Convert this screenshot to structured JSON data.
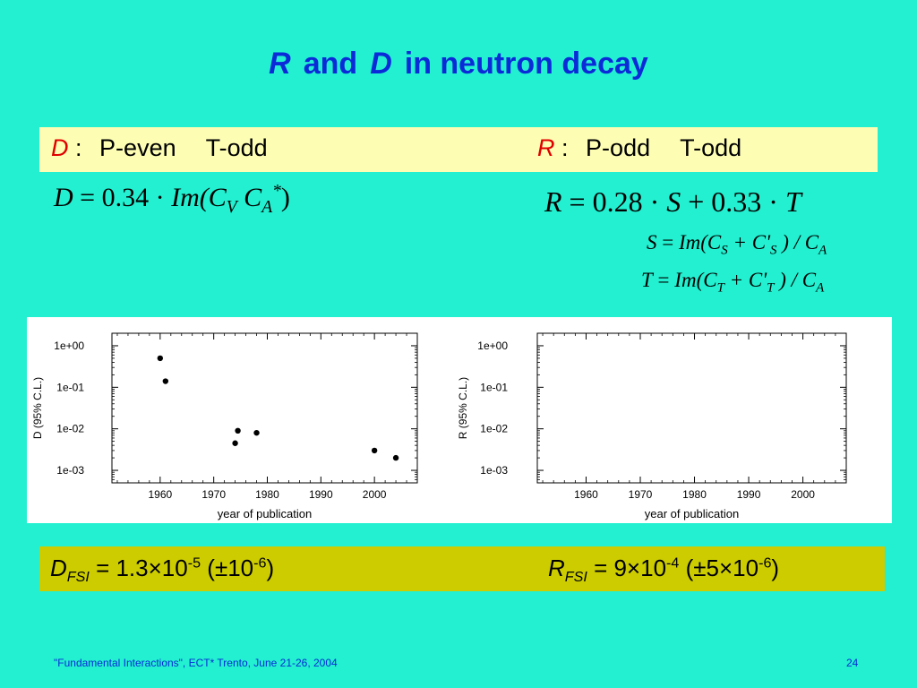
{
  "title": {
    "r": "R",
    "and": "and",
    "d": "D",
    "rest": "in neutron decay"
  },
  "symmetry": {
    "d_symbol": "D",
    "d_colon": ":",
    "d_p": "P-even",
    "d_t": "T-odd",
    "r_symbol": "R",
    "r_colon": ":",
    "r_p": "P-odd",
    "r_t": "T-odd"
  },
  "equations": {
    "d_lhs": "D",
    "d_eq": " = 0.34 · ",
    "d_im": "Im",
    "d_open": "(C",
    "d_sub_v": "V",
    "d_c": " C",
    "d_sub_a": "A",
    "d_sup_star": "*",
    "d_close": ")",
    "r_lhs": "R",
    "r_mid": " = 0.28 · ",
    "r_s": "S",
    "r_plus": " + 0.33 · ",
    "r_t": "T",
    "s_line": {
      "lhs": "S",
      "eq": " = ",
      "im": "Im",
      "open": "(C",
      "sub1": "S",
      "plus": " + C'",
      "sub2": "S",
      "close": " ) / C",
      "sub3": "A"
    },
    "t_line": {
      "lhs": "T",
      "eq": " = ",
      "im": "Im",
      "open": "(C",
      "sub1": "T",
      "plus": " + C'",
      "sub2": "T",
      "close": " ) / C",
      "sub3": "A"
    }
  },
  "chart_data": [
    {
      "type": "scatter",
      "xlabel": "year of publication",
      "ylabel": "D (95% C.L.)",
      "x_ticks": [
        1960,
        1970,
        1980,
        1990,
        2000
      ],
      "x_tick_labels": [
        "1960",
        "1970",
        "1980",
        "1990",
        "2000"
      ],
      "xlim": [
        1951,
        2008
      ],
      "y_scale": "log",
      "y_tick_labels": [
        "1e+00",
        "1e-01",
        "1e-02",
        "1e-03"
      ],
      "y_ticks": [
        1,
        0.1,
        0.01,
        0.001
      ],
      "ylim": [
        0.0005,
        2
      ],
      "points": [
        {
          "x": 1960,
          "y": 0.5
        },
        {
          "x": 1961,
          "y": 0.14
        },
        {
          "x": 1974,
          "y": 0.0045
        },
        {
          "x": 1974.5,
          "y": 0.009
        },
        {
          "x": 1978,
          "y": 0.008
        },
        {
          "x": 2000,
          "y": 0.003
        },
        {
          "x": 2004,
          "y": 0.002
        }
      ]
    },
    {
      "type": "scatter",
      "xlabel": "year of publication",
      "ylabel": "R (95% C.L.)",
      "x_ticks": [
        1960,
        1970,
        1980,
        1990,
        2000
      ],
      "x_tick_labels": [
        "1960",
        "1970",
        "1980",
        "1990",
        "2000"
      ],
      "xlim": [
        1951,
        2008
      ],
      "y_scale": "log",
      "y_tick_labels": [
        "1e+00",
        "1e-01",
        "1e-02",
        "1e-03"
      ],
      "y_ticks": [
        1,
        0.1,
        0.01,
        0.001
      ],
      "ylim": [
        0.0005,
        2
      ],
      "points": []
    }
  ],
  "results": {
    "d_sym": "D",
    "d_sub": "FSI",
    "d_val": " = 1.3×10",
    "d_exp": "-5",
    "d_paren_open": " (±10",
    "d_paren_exp": "-6",
    "d_paren_close": ")",
    "r_sym": "R",
    "r_sub": "FSI",
    "r_val": " = 9×10",
    "r_exp": "-4",
    "r_paren_open": " (±5×10",
    "r_paren_exp": "-6",
    "r_paren_close": ")"
  },
  "footer": {
    "text": "\"Fundamental Interactions\", ECT* Trento, June 21-26, 2004",
    "page": "24"
  },
  "colors": {
    "background": "#22f0d0",
    "title": "#0b2ad8",
    "band": "#fdfdb4",
    "result_band": "#cccc00",
    "symbol_red": "#e00000"
  }
}
